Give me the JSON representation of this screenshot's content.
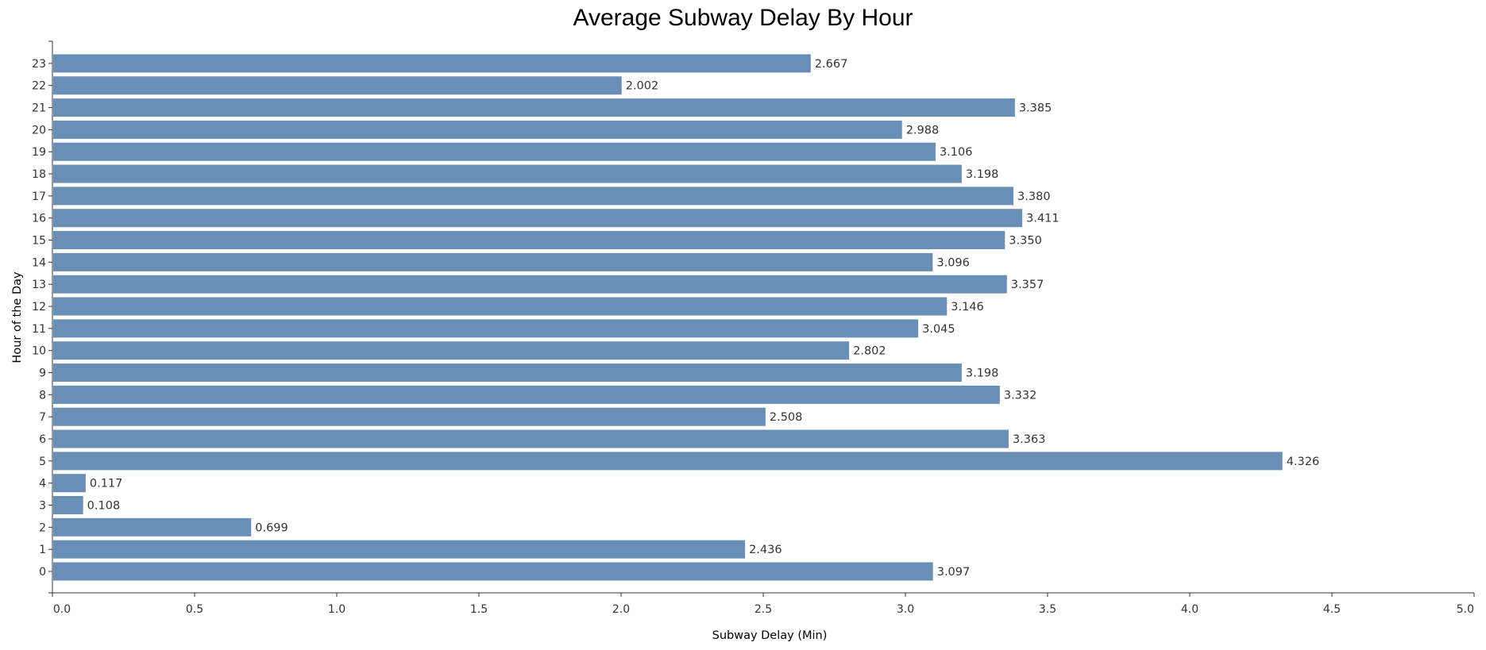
{
  "chart_data": {
    "type": "bar",
    "orientation": "horizontal",
    "title": "Average Subway Delay By Hour",
    "xlabel": "Subway Delay (Min)",
    "ylabel": "Hour of the Day",
    "categories": [
      "0",
      "1",
      "2",
      "3",
      "4",
      "5",
      "6",
      "7",
      "8",
      "9",
      "10",
      "11",
      "12",
      "13",
      "14",
      "15",
      "16",
      "17",
      "18",
      "19",
      "20",
      "21",
      "22",
      "23"
    ],
    "values": [
      3.097,
      2.436,
      0.699,
      0.108,
      0.117,
      4.326,
      3.363,
      2.508,
      3.332,
      3.198,
      2.802,
      3.045,
      3.146,
      3.357,
      3.096,
      3.35,
      3.411,
      3.38,
      3.198,
      3.106,
      2.988,
      3.385,
      2.002,
      2.667
    ],
    "data_labels": [
      "3.097",
      "2.436",
      "0.699",
      "0.108",
      "0.117",
      "4.326",
      "3.363",
      "2.508",
      "3.332",
      "3.198",
      "2.802",
      "3.045",
      "3.146",
      "3.357",
      "3.096",
      "3.350",
      "3.411",
      "3.380",
      "3.198",
      "3.106",
      "2.988",
      "3.385",
      "2.002",
      "2.667"
    ],
    "xlim": [
      0,
      5
    ],
    "xticks": [
      "0.0",
      "0.5",
      "1.0",
      "1.5",
      "2.0",
      "2.5",
      "3.0",
      "3.5",
      "4.0",
      "4.5",
      "5.0"
    ],
    "grid": false,
    "legend": "none",
    "bar_color": "#6a8fb7",
    "axis_color": "#333333"
  }
}
